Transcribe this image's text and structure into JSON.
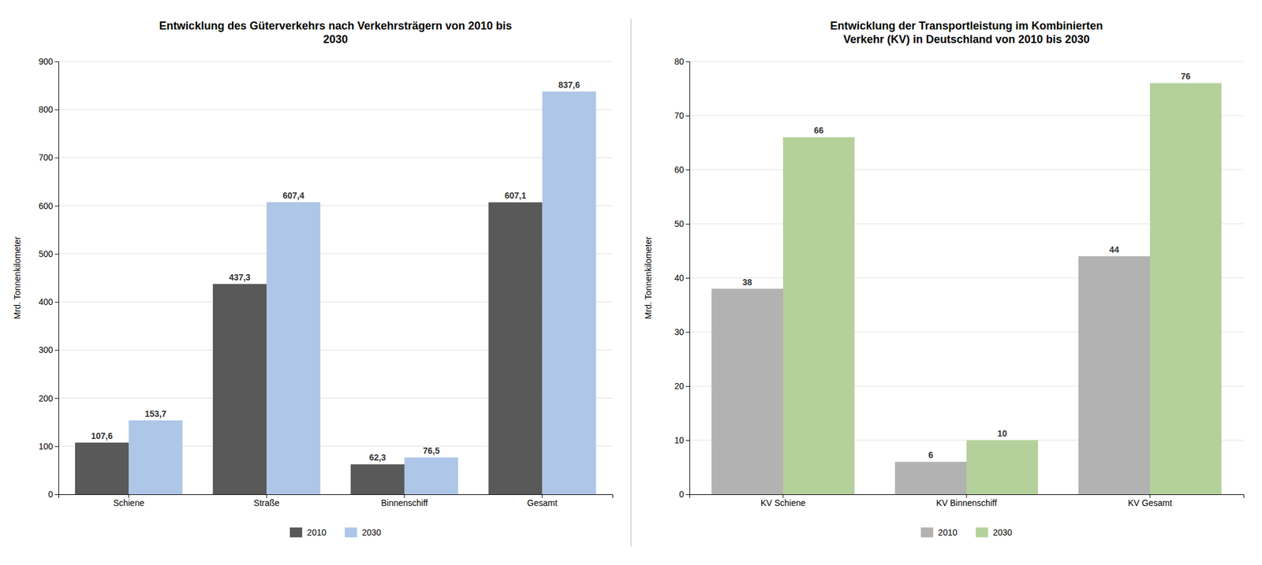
{
  "chart_data": [
    {
      "type": "bar",
      "title": "Entwicklung des Güterverkehrs nach Verkehrsträgern von 2010 bis\n2030",
      "categories": [
        "Schiene",
        "Straße",
        "Binnenschiff",
        "Gesamt"
      ],
      "series": [
        {
          "name": "2010",
          "color": "#595959",
          "values": [
            107.6,
            437.3,
            62.3,
            607.1
          ],
          "value_labels": [
            "107,6",
            "437,3",
            "62,3",
            "607,1"
          ]
        },
        {
          "name": "2030",
          "color": "#aec6e8",
          "values": [
            153.7,
            607.4,
            76.5,
            837.6
          ],
          "value_labels": [
            "153,7",
            "607,4",
            "76,5",
            "837,6"
          ]
        }
      ],
      "ylabel": "Mrd. Tonnenkilometer",
      "ylim": [
        0,
        900
      ],
      "yticks": [
        0,
        100,
        200,
        300,
        400,
        500,
        600,
        700,
        800,
        900
      ],
      "grid": true,
      "legend": "bottom",
      "data_labels": true
    },
    {
      "type": "bar",
      "title": "Entwicklung der Transportleistung im Kombinierten\nVerkehr (KV) in Deutschland von 2010 bis 2030",
      "categories": [
        "KV Schiene",
        "KV Binnenschiff",
        "KV Gesamt"
      ],
      "series": [
        {
          "name": "2010",
          "color": "#b2b2b2",
          "values": [
            38,
            6,
            44
          ]
        },
        {
          "name": "2030",
          "color": "#b5d19b",
          "values": [
            66,
            10,
            76
          ]
        }
      ],
      "ylabel": "Mrd. Tonnenkilometer",
      "ylim": [
        0,
        80
      ],
      "yticks": [
        0,
        10,
        20,
        30,
        40,
        50,
        60,
        70,
        80
      ],
      "grid": true,
      "legend": "bottom",
      "data_labels": true
    }
  ]
}
